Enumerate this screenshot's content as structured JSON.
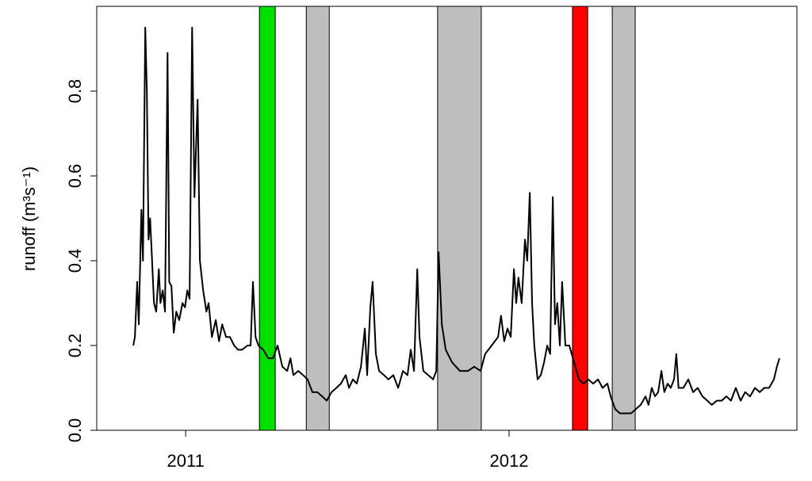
{
  "chart_data": {
    "type": "line",
    "y_label": "runoff  (m³s⁻¹)",
    "xlim": [
      2010.725,
      2012.89
    ],
    "xticks": [
      2011,
      2012
    ],
    "ylim": [
      0,
      1.0
    ],
    "yticks": [
      {
        "value": 0,
        "label": "0.0"
      },
      0.2,
      0.4,
      0.6,
      0.8
    ],
    "bands": [
      {
        "start": 2011.228,
        "end": 2011.277,
        "color": "#00e000"
      },
      {
        "start": 2011.373,
        "end": 2011.444,
        "color": "#bebebe"
      },
      {
        "start": 2011.779,
        "end": 2011.914,
        "color": "#bebebe"
      },
      {
        "start": 2012.196,
        "end": 2012.243,
        "color": "#ff0000"
      },
      {
        "start": 2012.319,
        "end": 2012.39,
        "color": "#bebebe"
      }
    ],
    "series": [
      {
        "color": "#000000",
        "x": [
          2010.838,
          2010.843,
          2010.85,
          2010.855,
          2010.863,
          2010.868,
          2010.875,
          2010.88,
          2010.885,
          2010.89,
          2010.895,
          2010.902,
          2010.909,
          2010.917,
          2010.922,
          2010.929,
          2010.936,
          2010.944,
          2010.949,
          2010.956,
          2010.963,
          2010.971,
          2010.98,
          2010.99,
          2010.998,
          2011.005,
          2011.012,
          2011.02,
          2011.027,
          2011.037,
          2011.044,
          2011.054,
          2011.064,
          2011.071,
          2011.081,
          2011.093,
          2011.103,
          2011.113,
          2011.125,
          2011.137,
          2011.15,
          2011.162,
          2011.174,
          2011.191,
          2011.201,
          2011.208,
          2011.216,
          2011.225,
          2011.24,
          2011.255,
          2011.27,
          2011.284,
          2011.299,
          2011.314,
          2011.324,
          2011.333,
          2011.348,
          2011.363,
          2011.377,
          2011.392,
          2011.407,
          2011.422,
          2011.436,
          2011.451,
          2011.466,
          2011.48,
          2011.495,
          2011.505,
          2011.517,
          2011.529,
          2011.542,
          2011.554,
          2011.561,
          2011.571,
          2011.578,
          2011.588,
          2011.598,
          2011.613,
          2011.627,
          2011.642,
          2011.657,
          2011.672,
          2011.686,
          2011.696,
          2011.706,
          2011.716,
          2011.723,
          2011.735,
          2011.75,
          2011.765,
          2011.775,
          2011.782,
          2011.792,
          2011.804,
          2011.824,
          2011.848,
          2011.873,
          2011.892,
          2011.912,
          2011.926,
          2011.946,
          2011.966,
          2011.975,
          2011.985,
          2011.995,
          2012.005,
          2012.015,
          2012.022,
          2012.029,
          2012.039,
          2012.049,
          2012.056,
          2012.064,
          2012.071,
          2012.078,
          2012.088,
          2012.098,
          2012.108,
          2012.118,
          2012.127,
          2012.135,
          2012.142,
          2012.149,
          2012.157,
          2012.164,
          2012.174,
          2012.186,
          2012.201,
          2012.216,
          2012.23,
          2012.245,
          2012.26,
          2012.275,
          2012.289,
          2012.304,
          2012.314,
          2012.328,
          2012.343,
          2012.363,
          2012.377,
          2012.392,
          2012.407,
          2012.422,
          2012.431,
          2012.441,
          2012.451,
          2012.461,
          2012.471,
          2012.48,
          2012.49,
          2012.5,
          2012.51,
          2012.517,
          2012.524,
          2012.539,
          2012.554,
          2012.569,
          2012.583,
          2012.598,
          2012.613,
          2012.627,
          2012.642,
          2012.657,
          2012.672,
          2012.686,
          2012.701,
          2012.716,
          2012.73,
          2012.745,
          2012.76,
          2012.775,
          2012.789,
          2012.804,
          2012.819,
          2012.828,
          2012.836
        ],
        "values": [
          0.2,
          0.22,
          0.35,
          0.25,
          0.52,
          0.4,
          0.95,
          0.8,
          0.45,
          0.5,
          0.42,
          0.3,
          0.28,
          0.38,
          0.3,
          0.33,
          0.28,
          0.89,
          0.35,
          0.34,
          0.23,
          0.28,
          0.26,
          0.3,
          0.29,
          0.33,
          0.31,
          0.95,
          0.55,
          0.78,
          0.4,
          0.33,
          0.28,
          0.3,
          0.22,
          0.26,
          0.21,
          0.25,
          0.22,
          0.22,
          0.2,
          0.19,
          0.19,
          0.2,
          0.2,
          0.35,
          0.22,
          0.2,
          0.19,
          0.17,
          0.17,
          0.2,
          0.15,
          0.14,
          0.17,
          0.13,
          0.14,
          0.13,
          0.12,
          0.09,
          0.09,
          0.08,
          0.07,
          0.09,
          0.1,
          0.11,
          0.13,
          0.1,
          0.12,
          0.11,
          0.15,
          0.24,
          0.13,
          0.29,
          0.35,
          0.18,
          0.14,
          0.13,
          0.12,
          0.13,
          0.1,
          0.14,
          0.13,
          0.19,
          0.14,
          0.38,
          0.22,
          0.14,
          0.13,
          0.12,
          0.14,
          0.42,
          0.25,
          0.19,
          0.16,
          0.14,
          0.14,
          0.15,
          0.14,
          0.18,
          0.2,
          0.22,
          0.27,
          0.21,
          0.24,
          0.22,
          0.38,
          0.3,
          0.36,
          0.3,
          0.45,
          0.4,
          0.56,
          0.3,
          0.2,
          0.12,
          0.13,
          0.16,
          0.2,
          0.18,
          0.55,
          0.25,
          0.3,
          0.2,
          0.35,
          0.2,
          0.2,
          0.16,
          0.12,
          0.11,
          0.12,
          0.11,
          0.12,
          0.1,
          0.11,
          0.08,
          0.05,
          0.04,
          0.04,
          0.04,
          0.05,
          0.06,
          0.08,
          0.06,
          0.1,
          0.08,
          0.09,
          0.14,
          0.09,
          0.11,
          0.1,
          0.12,
          0.18,
          0.1,
          0.1,
          0.12,
          0.09,
          0.1,
          0.08,
          0.07,
          0.06,
          0.07,
          0.07,
          0.08,
          0.07,
          0.1,
          0.07,
          0.09,
          0.08,
          0.1,
          0.09,
          0.1,
          0.1,
          0.12,
          0.15,
          0.17
        ]
      }
    ]
  }
}
